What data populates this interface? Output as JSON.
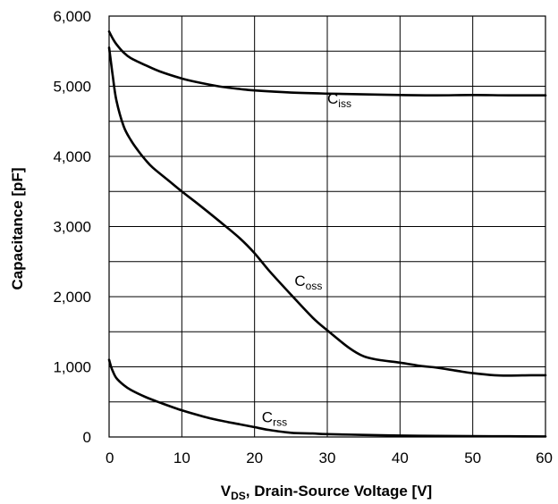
{
  "chart_data": {
    "type": "line",
    "xlabel": {
      "main": "V",
      "sub": "DS",
      "rest": ", Drain-Source Voltage [V]"
    },
    "ylabel": "Capacitance [pF]",
    "xlim": [
      0,
      60
    ],
    "ylim": [
      0,
      6000
    ],
    "x_ticks": [
      0,
      10,
      20,
      30,
      40,
      50,
      60
    ],
    "x_tick_labels": [
      "0",
      "10",
      "20",
      "30",
      "40",
      "50",
      "60"
    ],
    "y_ticks": [
      0,
      1000,
      2000,
      3000,
      4000,
      5000,
      6000
    ],
    "y_tick_labels": [
      "0",
      "1,000",
      "2,000",
      "3,000",
      "4,000",
      "5,000",
      "6,000"
    ],
    "grid": true,
    "series": [
      {
        "name": "Ciss",
        "label_main": "C",
        "label_sub": "iss",
        "label_pos": [
          30,
          4750
        ],
        "x": [
          0,
          0.5,
          1,
          2,
          3,
          5,
          7,
          10,
          12,
          15,
          18,
          20,
          25,
          30,
          35,
          40,
          45,
          50,
          55,
          60
        ],
        "y": [
          5780,
          5680,
          5600,
          5480,
          5400,
          5300,
          5210,
          5110,
          5060,
          5000,
          4960,
          4940,
          4910,
          4895,
          4885,
          4875,
          4870,
          4875,
          4870,
          4870
        ]
      },
      {
        "name": "Coss",
        "label_main": "C",
        "label_sub": "oss",
        "label_pos": [
          25.5,
          2150
        ],
        "x": [
          0,
          0.25,
          0.5,
          1,
          2,
          3,
          4,
          5,
          6,
          8,
          10,
          12,
          15,
          18,
          20,
          22,
          25,
          28,
          30,
          33,
          35,
          37,
          40,
          43,
          45,
          48,
          50,
          53,
          55,
          58,
          60
        ],
        "y": [
          5550,
          5350,
          5150,
          4800,
          4430,
          4230,
          4080,
          3950,
          3840,
          3670,
          3500,
          3340,
          3090,
          2830,
          2620,
          2370,
          2030,
          1700,
          1520,
          1270,
          1150,
          1100,
          1060,
          1010,
          990,
          940,
          910,
          880,
          875,
          880,
          880
        ]
      },
      {
        "name": "Crss",
        "label_main": "C",
        "label_sub": "rss",
        "label_pos": [
          21,
          210
        ],
        "x": [
          0,
          0.25,
          0.5,
          1,
          2,
          3,
          5,
          7,
          10,
          13,
          15,
          18,
          20,
          22,
          25,
          28,
          30,
          35,
          40,
          45,
          50,
          55,
          60
        ],
        "y": [
          1100,
          1010,
          940,
          840,
          740,
          670,
          570,
          490,
          380,
          290,
          240,
          180,
          140,
          100,
          60,
          50,
          40,
          30,
          20,
          15,
          12,
          10,
          8
        ]
      }
    ]
  }
}
